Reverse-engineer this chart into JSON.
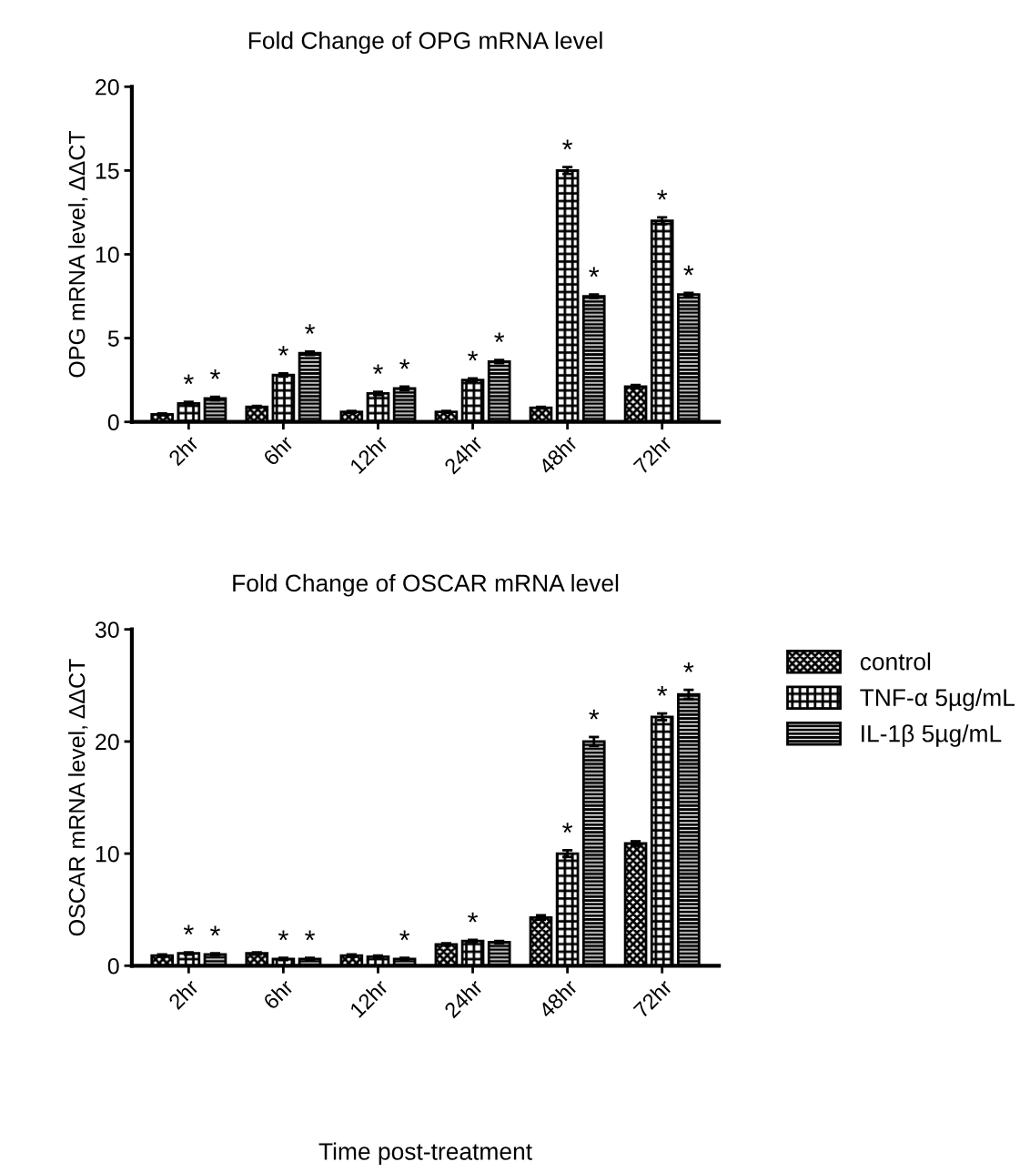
{
  "chart_data": [
    {
      "type": "bar",
      "title": "Fold Change of OPG mRNA level",
      "ylabel": "OPG mRNA level, ΔΔCT",
      "categories": [
        "2hr",
        "6hr",
        "12hr",
        "24hr",
        "48hr",
        "72hr"
      ],
      "ylim": [
        0,
        20
      ],
      "yticks": [
        0,
        5,
        10,
        15,
        20
      ],
      "grid": false,
      "legend": false,
      "series": [
        {
          "color": "#000000",
          "values": [
            0.45,
            0.9,
            0.6,
            0.6,
            0.85,
            2.1
          ],
          "errors": [
            0.05,
            0.05,
            0.05,
            0.05,
            0.05,
            0.1
          ],
          "value_labels": [
            null,
            null,
            null,
            null,
            null,
            null
          ]
        },
        {
          "color": "#000000",
          "values": [
            1.1,
            2.8,
            1.7,
            2.5,
            15.0,
            12.0
          ],
          "errors": [
            0.1,
            0.1,
            0.1,
            0.1,
            0.2,
            0.2
          ],
          "value_labels": [
            "*",
            "*",
            "*",
            "*",
            "*",
            "*"
          ]
        },
        {
          "color": "#000000",
          "values": [
            1.4,
            4.1,
            2.0,
            3.6,
            7.5,
            7.6
          ],
          "errors": [
            0.1,
            0.1,
            0.1,
            0.1,
            0.1,
            0.1
          ],
          "value_labels": [
            "*",
            "*",
            "*",
            "*",
            "*",
            "*"
          ]
        }
      ]
    },
    {
      "type": "bar",
      "title": "Fold Change of OSCAR mRNA level",
      "ylabel": "OSCAR mRNA level, ΔΔCT",
      "xlabel": "Time post-treatment",
      "categories": [
        "2hr",
        "6hr",
        "12hr",
        "24hr",
        "48hr",
        "72hr"
      ],
      "ylim": [
        0,
        30
      ],
      "yticks": [
        0,
        10,
        20,
        30
      ],
      "grid": false,
      "legend": "right",
      "series": [
        {
          "name": "control",
          "color": "#000000",
          "values": [
            0.9,
            1.1,
            0.9,
            1.9,
            4.3,
            10.9
          ],
          "errors": [
            0.1,
            0.1,
            0.1,
            0.1,
            0.2,
            0.2
          ],
          "value_labels": [
            null,
            null,
            null,
            null,
            null,
            null
          ]
        },
        {
          "name": "TNF-α 5µg/mL",
          "color": "#000000",
          "values": [
            1.1,
            0.6,
            0.8,
            2.2,
            10.0,
            22.2
          ],
          "errors": [
            0.1,
            0.1,
            0.1,
            0.1,
            0.3,
            0.3
          ],
          "value_labels": [
            "*",
            "*",
            null,
            "*",
            "*",
            "*"
          ]
        },
        {
          "name": "IL-1β 5µg/mL",
          "color": "#000000",
          "values": [
            1.0,
            0.6,
            0.6,
            2.1,
            20.0,
            24.2
          ],
          "errors": [
            0.1,
            0.1,
            0.1,
            0.1,
            0.4,
            0.4
          ],
          "value_labels": [
            "*",
            "*",
            "*",
            null,
            "*",
            "*"
          ]
        }
      ]
    }
  ]
}
